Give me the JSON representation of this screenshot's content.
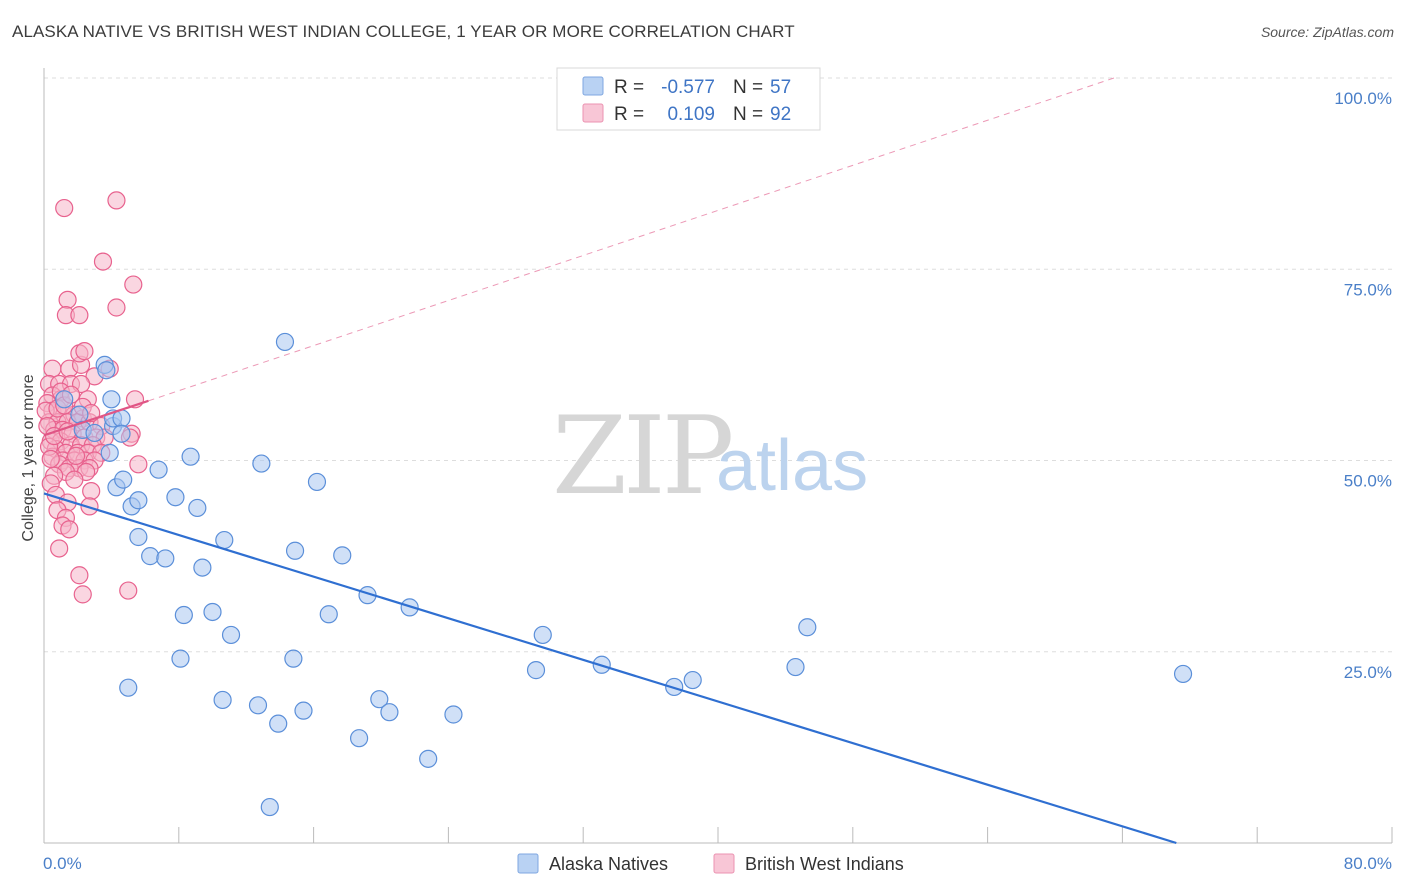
{
  "title": "ALASKA NATIVE VS BRITISH WEST INDIAN COLLEGE, 1 YEAR OR MORE CORRELATION CHART",
  "source": "Source: ZipAtlas.com",
  "watermark": {
    "zip": "ZIP",
    "atlas": "atlas"
  },
  "colors": {
    "blue": "#5b8fd9",
    "blue_fill": "#a9c7f0",
    "pink": "#e8628e",
    "pink_fill": "#f5b5c9",
    "blue_line": "#2f6fd1",
    "pink_line": "#e05585",
    "grid": "#dddddd",
    "tick_text": "#4a7fc8"
  },
  "chart_data": {
    "type": "scatter",
    "title": "ALASKA NATIVE VS BRITISH WEST INDIAN COLLEGE, 1 YEAR OR MORE CORRELATION CHART",
    "xlabel": "",
    "ylabel": "College, 1 year or more",
    "xlim": [
      0,
      80
    ],
    "ylim": [
      0,
      100
    ],
    "x_tick_labels": {
      "min": "0.0%",
      "max": "80.0%"
    },
    "y_ticks": [
      {
        "value": 100,
        "label": "100.0%"
      },
      {
        "value": 75,
        "label": "75.0%"
      },
      {
        "value": 50,
        "label": "50.0%"
      },
      {
        "value": 25,
        "label": "25.0%"
      }
    ],
    "legend": {
      "r_label": "R =",
      "n_label": "N =",
      "rows": [
        {
          "r": "-0.577",
          "n": "57"
        },
        {
          "r": "0.109",
          "n": "92"
        }
      ]
    },
    "series": [
      {
        "name": "Alaska Natives",
        "r": -0.577,
        "n": 57,
        "trend": {
          "x0": 0,
          "y0": 45.7,
          "x1": 67.2,
          "y1": 0,
          "dashed_extension": false
        },
        "points": [
          [
            3.6,
            62.5
          ],
          [
            3.7,
            61.8
          ],
          [
            4.0,
            58.0
          ],
          [
            4.1,
            54.5
          ],
          [
            4.1,
            55.5
          ],
          [
            3.9,
            51.0
          ],
          [
            4.6,
            55.5
          ],
          [
            4.6,
            53.5
          ],
          [
            4.3,
            46.5
          ],
          [
            4.7,
            47.5
          ],
          [
            5.2,
            44.0
          ],
          [
            5.6,
            44.8
          ],
          [
            5.6,
            40.0
          ],
          [
            6.3,
            37.5
          ],
          [
            6.8,
            48.8
          ],
          [
            7.2,
            37.2
          ],
          [
            7.8,
            45.2
          ],
          [
            8.7,
            50.5
          ],
          [
            9.1,
            43.8
          ],
          [
            9.4,
            36.0
          ],
          [
            10.7,
            39.6
          ],
          [
            12.9,
            49.6
          ],
          [
            14.3,
            65.5
          ],
          [
            14.9,
            38.2
          ],
          [
            16.2,
            47.2
          ],
          [
            17.7,
            37.6
          ],
          [
            19.2,
            32.4
          ],
          [
            21.7,
            30.8
          ],
          [
            16.9,
            29.9
          ],
          [
            10.0,
            30.2
          ],
          [
            8.3,
            29.8
          ],
          [
            11.1,
            27.2
          ],
          [
            8.1,
            24.1
          ],
          [
            14.8,
            24.1
          ],
          [
            5.0,
            20.3
          ],
          [
            10.6,
            18.7
          ],
          [
            12.7,
            18.0
          ],
          [
            13.9,
            15.6
          ],
          [
            15.4,
            17.3
          ],
          [
            19.9,
            18.8
          ],
          [
            20.5,
            17.1
          ],
          [
            24.3,
            16.8
          ],
          [
            18.7,
            13.7
          ],
          [
            22.8,
            11.0
          ],
          [
            13.4,
            4.7
          ],
          [
            29.6,
            27.2
          ],
          [
            29.2,
            22.6
          ],
          [
            33.1,
            23.3
          ],
          [
            37.4,
            20.4
          ],
          [
            38.5,
            21.3
          ],
          [
            44.6,
            23.0
          ],
          [
            45.3,
            28.2
          ],
          [
            67.6,
            22.1
          ],
          [
            2.1,
            56.0
          ],
          [
            2.3,
            54.0
          ],
          [
            3.0,
            53.6
          ],
          [
            1.2,
            58.0
          ]
        ]
      },
      {
        "name": "British West Indians",
        "r": 0.109,
        "n": 92,
        "trend": {
          "x0": 0,
          "y0": 53.3,
          "x1": 6.2,
          "y1": 57.8,
          "dashed_extension": true,
          "dash_x1": 63.5,
          "dash_y1": 100
        },
        "points": [
          [
            1.2,
            83.0
          ],
          [
            4.3,
            84.0
          ],
          [
            3.5,
            76.0
          ],
          [
            5.3,
            73.0
          ],
          [
            1.4,
            71.0
          ],
          [
            1.3,
            69.0
          ],
          [
            2.1,
            69.0
          ],
          [
            4.3,
            70.0
          ],
          [
            0.5,
            62.0
          ],
          [
            1.5,
            62.0
          ],
          [
            2.2,
            62.5
          ],
          [
            2.1,
            64.0
          ],
          [
            2.4,
            64.3
          ],
          [
            3.0,
            61.0
          ],
          [
            3.9,
            62.0
          ],
          [
            0.3,
            60.0
          ],
          [
            0.9,
            60.0
          ],
          [
            1.6,
            60.0
          ],
          [
            2.2,
            60.0
          ],
          [
            0.5,
            58.5
          ],
          [
            1.0,
            58.0
          ],
          [
            2.6,
            58.0
          ],
          [
            5.4,
            58.0
          ],
          [
            0.2,
            57.5
          ],
          [
            0.5,
            56.5
          ],
          [
            1.2,
            56.0
          ],
          [
            1.8,
            56.0
          ],
          [
            2.3,
            55.5
          ],
          [
            0.3,
            55.0
          ],
          [
            0.8,
            55.0
          ],
          [
            1.4,
            55.0
          ],
          [
            2.0,
            55.0
          ],
          [
            2.7,
            55.0
          ],
          [
            3.4,
            54.5
          ],
          [
            0.6,
            54.0
          ],
          [
            1.1,
            54.0
          ],
          [
            1.7,
            53.5
          ],
          [
            2.4,
            53.0
          ],
          [
            3.1,
            53.0
          ],
          [
            3.6,
            53.0
          ],
          [
            5.2,
            53.5
          ],
          [
            5.1,
            53.0
          ],
          [
            0.4,
            52.5
          ],
          [
            1.0,
            52.5
          ],
          [
            1.6,
            52.0
          ],
          [
            2.2,
            52.0
          ],
          [
            2.9,
            52.0
          ],
          [
            0.7,
            51.5
          ],
          [
            1.3,
            51.0
          ],
          [
            2.0,
            51.0
          ],
          [
            2.6,
            51.0
          ],
          [
            3.4,
            51.0
          ],
          [
            0.5,
            50.5
          ],
          [
            1.1,
            50.0
          ],
          [
            1.8,
            50.0
          ],
          [
            2.4,
            50.0
          ],
          [
            3.0,
            50.0
          ],
          [
            5.6,
            49.5
          ],
          [
            0.9,
            49.5
          ],
          [
            1.5,
            49.0
          ],
          [
            2.1,
            49.0
          ],
          [
            2.7,
            49.0
          ],
          [
            1.3,
            48.5
          ],
          [
            0.6,
            48.0
          ],
          [
            2.5,
            48.5
          ],
          [
            1.8,
            47.5
          ],
          [
            0.4,
            47.0
          ],
          [
            2.8,
            46.0
          ],
          [
            0.7,
            45.5
          ],
          [
            1.4,
            44.5
          ],
          [
            2.7,
            44.0
          ],
          [
            0.8,
            43.5
          ],
          [
            1.3,
            42.5
          ],
          [
            1.1,
            41.5
          ],
          [
            1.5,
            41.0
          ],
          [
            0.9,
            38.5
          ],
          [
            2.1,
            35.0
          ],
          [
            5.0,
            33.0
          ],
          [
            2.3,
            32.5
          ],
          [
            0.1,
            56.5
          ],
          [
            0.2,
            54.5
          ],
          [
            0.3,
            51.8
          ],
          [
            0.4,
            50.2
          ],
          [
            0.6,
            53.2
          ],
          [
            0.8,
            56.8
          ],
          [
            1.0,
            59.0
          ],
          [
            1.2,
            57.2
          ],
          [
            1.4,
            53.8
          ],
          [
            1.6,
            58.6
          ],
          [
            1.9,
            50.6
          ],
          [
            2.3,
            57.0
          ],
          [
            2.8,
            56.2
          ]
        ]
      }
    ]
  },
  "bottom_legend": [
    {
      "label": "Alaska Natives"
    },
    {
      "label": "British West Indians"
    }
  ]
}
